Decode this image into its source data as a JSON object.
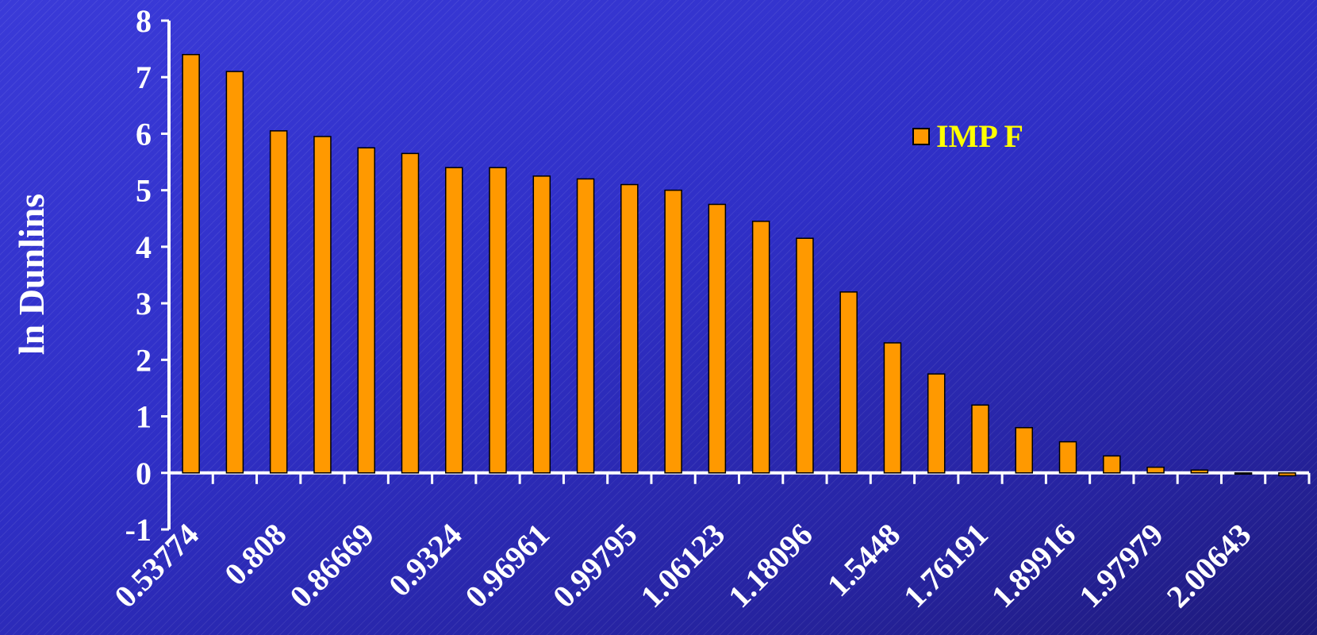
{
  "colors": {
    "bar": "#ff9900",
    "bar_stroke": "#000000",
    "axis": "#ffffff",
    "text": "#ffffff",
    "legend_text": "#ffff00"
  },
  "chart_data": {
    "type": "bar",
    "title": "",
    "xlabel": "",
    "ylabel": "ln Dunlins",
    "ylim": [
      -1,
      8
    ],
    "yticks": [
      -1,
      0,
      1,
      2,
      3,
      4,
      5,
      6,
      7,
      8
    ],
    "grid": false,
    "legend_position": "top-right",
    "categories": [
      "0.53774",
      "",
      "0.808",
      "",
      "0.86669",
      "",
      "0.9324",
      "",
      "0.96961",
      "",
      "0.99795",
      "",
      "1.06123",
      "",
      "1.18096",
      "",
      "1.5448",
      "",
      "1.76191",
      "",
      "1.89916",
      "",
      "1.97979",
      "",
      "2.00643",
      ""
    ],
    "series": [
      {
        "name": "IMP F",
        "values": [
          7.4,
          7.1,
          6.05,
          5.95,
          5.75,
          5.65,
          5.4,
          5.4,
          5.25,
          5.2,
          5.1,
          5.0,
          4.75,
          4.45,
          4.15,
          3.2,
          2.3,
          1.75,
          1.2,
          0.8,
          0.55,
          0.3,
          0.1,
          0.05,
          0.0,
          -0.05
        ]
      }
    ]
  }
}
